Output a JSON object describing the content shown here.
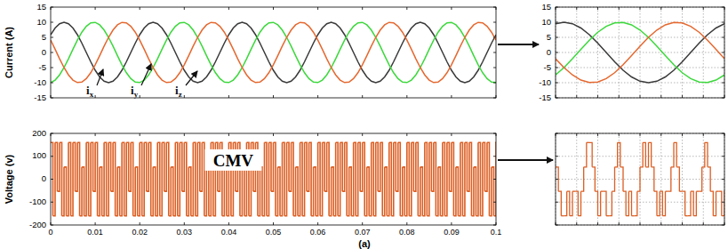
{
  "caption": "(a)",
  "chart_data": [
    {
      "type": "line",
      "ylabel": "Current (A)",
      "grid": false,
      "tick_labels": "y",
      "xlim": [
        0,
        0.1
      ],
      "xticks": [
        0,
        0.01,
        0.02,
        0.03,
        0.04,
        0.05,
        0.06,
        0.07,
        0.08,
        0.09,
        0.1
      ],
      "ylim": [
        -15,
        15
      ],
      "yticks": [
        15,
        10,
        5,
        0,
        -5,
        -10,
        -15
      ],
      "x": [
        0,
        0.001,
        0.002,
        0.003,
        0.004,
        0.005,
        0.006,
        0.007,
        0.008,
        0.009,
        0.01,
        0.011,
        0.012,
        0.013,
        0.014,
        0.015,
        0.016,
        0.017,
        0.018,
        0.019,
        0.02,
        0.021,
        0.022,
        0.023,
        0.024,
        0.025,
        0.026,
        0.027,
        0.028,
        0.029,
        0.03,
        0.031,
        0.032,
        0.033,
        0.034,
        0.035,
        0.036,
        0.037,
        0.038,
        0.039,
        0.04,
        0.041,
        0.042,
        0.043,
        0.044,
        0.045,
        0.046,
        0.047,
        0.048,
        0.049,
        0.05,
        0.051,
        0.052,
        0.053,
        0.054,
        0.055,
        0.056,
        0.057,
        0.058,
        0.059,
        0.06,
        0.061,
        0.062,
        0.063,
        0.064,
        0.065,
        0.066,
        0.067,
        0.068,
        0.069,
        0.07,
        0.071,
        0.072,
        0.073,
        0.074,
        0.075,
        0.076,
        0.077,
        0.078,
        0.079,
        0.08,
        0.081,
        0.082,
        0.083,
        0.084,
        0.085,
        0.086,
        0.087,
        0.088,
        0.089,
        0.09,
        0.091,
        0.092,
        0.093,
        0.094,
        0.095,
        0.096,
        0.097,
        0.098,
        0.099,
        0.1
      ],
      "series": [
        {
          "name": "ix",
          "color": "#3a3a3a",
          "values": [
            5.88,
            8.09,
            9.51,
            10,
            9.51,
            8.09,
            5.88,
            3.09,
            0,
            -3.09,
            -5.88,
            -8.09,
            -9.51,
            -10,
            -9.51,
            -8.09,
            -5.88,
            -3.09,
            0,
            3.09,
            5.88,
            8.09,
            9.51,
            10,
            9.51,
            8.09,
            5.88,
            3.09,
            0,
            -3.09,
            -5.88,
            -8.09,
            -9.51,
            -10,
            -9.51,
            -8.09,
            -5.88,
            -3.09,
            0,
            3.09,
            5.88,
            8.09,
            9.51,
            10,
            9.51,
            8.09,
            5.88,
            3.09,
            0,
            -3.09,
            -5.88,
            -8.09,
            -9.51,
            -10,
            -9.51,
            -8.09,
            -5.88,
            -3.09,
            0,
            3.09,
            5.88,
            8.09,
            9.51,
            10,
            9.51,
            8.09,
            5.88,
            3.09,
            0,
            -3.09,
            -5.88,
            -8.09,
            -9.51,
            -10,
            -9.51,
            -8.09,
            -5.88,
            -3.09,
            0,
            3.09,
            5.88,
            8.09,
            9.51,
            10,
            9.51,
            8.09,
            5.88,
            3.09,
            0,
            -3.09,
            -5.88,
            -8.09,
            -9.51,
            -10,
            -9.51,
            -8.09,
            -5.88,
            -3.09,
            0,
            3.09,
            5.88
          ]
        },
        {
          "name": "iy",
          "color": "#3cd83c",
          "values": [
            -9.95,
            -9.14,
            -7.43,
            -5,
            -2.08,
            1.05,
            4.07,
            6.69,
            8.66,
            9.78,
            9.95,
            9.14,
            7.43,
            5,
            2.08,
            -1.05,
            -4.07,
            -6.69,
            -8.66,
            -9.78,
            -9.95,
            -9.14,
            -7.43,
            -5,
            -2.08,
            1.05,
            4.07,
            6.69,
            8.66,
            9.78,
            9.95,
            9.14,
            7.43,
            5,
            2.08,
            -1.05,
            -4.07,
            -6.69,
            -8.66,
            -9.78,
            -9.95,
            -9.14,
            -7.43,
            -5,
            -2.08,
            1.05,
            4.07,
            6.69,
            8.66,
            9.78,
            9.95,
            9.14,
            7.43,
            5,
            2.08,
            -1.05,
            -4.07,
            -6.69,
            -8.66,
            -9.78,
            -9.95,
            -9.14,
            -7.43,
            -5,
            -2.08,
            1.05,
            4.07,
            6.69,
            8.66,
            9.78,
            9.95,
            9.14,
            7.43,
            5,
            2.08,
            -1.05,
            -4.07,
            -6.69,
            -8.66,
            -9.78,
            -9.95,
            -9.14,
            -7.43,
            -5,
            -2.08,
            1.05,
            4.07,
            6.69,
            8.66,
            9.78,
            9.95,
            9.14,
            7.43,
            5,
            2.08,
            -1.05,
            -4.07,
            -6.69,
            -8.66,
            -9.78,
            -9.95
          ]
        },
        {
          "name": "iz",
          "color": "#e5682f",
          "values": [
            4.07,
            1.05,
            -2.08,
            -5,
            -7.43,
            -9.14,
            -9.95,
            -9.78,
            -8.66,
            -6.69,
            -4.07,
            -1.05,
            2.08,
            5,
            7.43,
            9.14,
            9.95,
            9.78,
            8.66,
            6.69,
            4.07,
            1.05,
            -2.08,
            -5,
            -7.43,
            -9.14,
            -9.95,
            -9.78,
            -8.66,
            -6.69,
            -4.07,
            -1.05,
            2.08,
            5,
            7.43,
            9.14,
            9.95,
            9.78,
            8.66,
            6.69,
            4.07,
            1.05,
            -2.08,
            -5,
            -7.43,
            -9.14,
            -9.95,
            -9.78,
            -8.66,
            -6.69,
            -4.07,
            -1.05,
            2.08,
            5,
            7.43,
            9.14,
            9.95,
            9.78,
            8.66,
            6.69,
            4.07,
            1.05,
            -2.08,
            -5,
            -7.43,
            -9.14,
            -9.95,
            -9.78,
            -8.66,
            -6.69,
            -4.07,
            -1.05,
            2.08,
            5,
            7.43,
            9.14,
            9.95,
            9.78,
            8.66,
            6.69,
            4.07,
            1.05,
            -2.08,
            -5,
            -7.43,
            -9.14,
            -9.95,
            -9.78,
            -8.66,
            -6.69,
            -4.07,
            -1.05,
            2.08,
            5,
            7.43,
            9.14,
            9.95,
            9.78,
            8.66,
            6.69,
            4.07
          ]
        }
      ]
    },
    {
      "type": "line",
      "grid": true,
      "tick_labels": "y",
      "xlim": [
        0.002,
        0.022
      ],
      "xticks": [
        0.002,
        0.0045,
        0.007,
        0.0095,
        0.012,
        0.0145,
        0.017,
        0.0195,
        0.022
      ],
      "ylim": [
        -15,
        15
      ],
      "yticks": [
        15,
        10,
        5,
        0,
        -5,
        -10,
        -15
      ],
      "x": [
        0.002,
        0.003,
        0.004,
        0.005,
        0.006,
        0.007,
        0.008,
        0.009,
        0.01,
        0.011,
        0.012,
        0.013,
        0.014,
        0.015,
        0.016,
        0.017,
        0.018,
        0.019,
        0.02,
        0.021,
        0.022
      ],
      "series": [
        {
          "color": "#3a3a3a",
          "values": [
            9.51,
            10,
            9.51,
            8.09,
            5.88,
            3.09,
            0,
            -3.09,
            -5.88,
            -8.09,
            -9.51,
            -10,
            -9.51,
            -8.09,
            -5.88,
            -3.09,
            0,
            3.09,
            5.88,
            8.09,
            9.51
          ]
        },
        {
          "color": "#3cd83c",
          "values": [
            -7.43,
            -5,
            -2.08,
            1.05,
            4.07,
            6.69,
            8.66,
            9.78,
            9.95,
            9.14,
            7.43,
            5,
            2.08,
            -1.05,
            -4.07,
            -6.69,
            -8.66,
            -9.78,
            -9.95,
            -9.14,
            -7.43
          ]
        },
        {
          "color": "#e5682f",
          "values": [
            -2.08,
            -5,
            -7.43,
            -9.14,
            -9.95,
            -9.78,
            -8.66,
            -6.69,
            -4.07,
            -1.05,
            2.08,
            5,
            7.43,
            9.14,
            9.95,
            9.78,
            8.66,
            6.69,
            4.07,
            1.05,
            -2.08
          ]
        }
      ]
    },
    {
      "type": "line",
      "line_style": "step",
      "ylabel": "Voltage (v)",
      "grid": false,
      "annotations": [
        "CMV"
      ],
      "xlim": [
        0,
        0.1
      ],
      "xticks": [
        0,
        0.01,
        0.02,
        0.03,
        0.04,
        0.05,
        0.06,
        0.07,
        0.08,
        0.09,
        0.1
      ],
      "ylim": [
        -200,
        200
      ],
      "yticks": [
        200,
        100,
        0,
        -100,
        -200
      ],
      "x": [
        0,
        0.0005,
        0.001,
        0.0015,
        0.002,
        0.0025,
        0.003,
        0.0035,
        0.004,
        0.0045,
        0.005,
        0.0055,
        0.006,
        0.0065,
        0.007,
        0.0075,
        0.008,
        0.0085,
        0.009,
        0.0095,
        0.01,
        0.0105,
        0.011,
        0.0115,
        0.012,
        0.0125,
        0.013,
        0.0135,
        0.014,
        0.0145,
        0.015,
        0.0155,
        0.016,
        0.0165,
        0.017,
        0.0175,
        0.018,
        0.0185,
        0.019,
        0.0195,
        0.02,
        0.0205,
        0.021,
        0.0215,
        0.022,
        0.0225,
        0.023,
        0.0235,
        0.024,
        0.0245,
        0.025,
        0.0255,
        0.026,
        0.0265,
        0.027,
        0.0275,
        0.028,
        0.0285,
        0.029,
        0.0295,
        0.03,
        0.0305,
        0.031,
        0.0315,
        0.032,
        0.0325,
        0.033,
        0.0335,
        0.034,
        0.0345,
        0.035,
        0.0355,
        0.036,
        0.0365,
        0.037,
        0.0375,
        0.038,
        0.0385,
        0.039,
        0.0395,
        0.04,
        0.0405,
        0.041,
        0.0415,
        0.042,
        0.0425,
        0.043,
        0.0435,
        0.044,
        0.0445,
        0.045,
        0.0455,
        0.046,
        0.0465,
        0.047,
        0.0475,
        0.048,
        0.0485,
        0.049,
        0.0495,
        0.05,
        0.0505,
        0.051,
        0.0515,
        0.052,
        0.0525,
        0.053,
        0.0535,
        0.054,
        0.0545,
        0.055,
        0.0555,
        0.056,
        0.0565,
        0.057,
        0.0575,
        0.058,
        0.0585,
        0.059,
        0.0595,
        0.06,
        0.0605,
        0.061,
        0.0615,
        0.062,
        0.0625,
        0.063,
        0.0635,
        0.064,
        0.0645,
        0.065,
        0.0655,
        0.066,
        0.0665,
        0.067,
        0.0675,
        0.068,
        0.0685,
        0.069,
        0.0695,
        0.07,
        0.0705,
        0.071,
        0.0715,
        0.072,
        0.0725,
        0.073,
        0.0735,
        0.074,
        0.0745,
        0.075,
        0.0755,
        0.076,
        0.0765,
        0.077,
        0.0775,
        0.078,
        0.0785,
        0.079,
        0.0795,
        0.08,
        0.0805,
        0.081,
        0.0815,
        0.082,
        0.0825,
        0.083,
        0.0835,
        0.084,
        0.0845,
        0.085,
        0.0855,
        0.086,
        0.0865,
        0.087,
        0.0875,
        0.088,
        0.0885,
        0.089,
        0.0895,
        0.09,
        0.0905,
        0.091,
        0.0915,
        0.092,
        0.0925,
        0.093,
        0.0935,
        0.094,
        0.0945,
        0.095,
        0.0955,
        0.096,
        0.0965,
        0.097,
        0.0975,
        0.098,
        0.0985,
        0.099,
        0.0995,
        0.1
      ],
      "series": [
        {
          "color": "#dc5e22",
          "values": [
            160,
            -160,
            160,
            -53,
            160,
            -160,
            53,
            -160,
            160,
            -160,
            160,
            -53,
            160,
            -160,
            53,
            -160,
            160,
            -160,
            160,
            -53,
            160,
            -160,
            53,
            -160,
            160,
            -160,
            160,
            -53,
            160,
            -160,
            53,
            -160,
            160,
            -160,
            160,
            -53,
            160,
            -160,
            53,
            -160,
            160,
            -160,
            160,
            -53,
            160,
            -160,
            53,
            -160,
            160,
            -160,
            160,
            -53,
            160,
            -160,
            53,
            -160,
            160,
            -160,
            160,
            -53,
            160,
            -160,
            53,
            -160,
            160,
            -160,
            160,
            -53,
            160,
            -160,
            53,
            -160,
            160,
            -160,
            160,
            -53,
            160,
            -160,
            53,
            -160,
            160,
            -160,
            160,
            -53,
            160,
            -160,
            53,
            -160,
            160,
            -160,
            160,
            -53,
            160,
            -160,
            53,
            -160,
            160,
            -160,
            160,
            -53,
            160,
            -160,
            53,
            -160,
            160,
            -160,
            160,
            -53,
            160,
            -160,
            53,
            -160,
            160,
            -160,
            160,
            -53,
            160,
            -160,
            53,
            -160,
            160,
            -160,
            160,
            -53,
            160,
            -160,
            53,
            -160,
            160,
            -160,
            160,
            -53,
            160,
            -160,
            53,
            -160,
            160,
            -160,
            160,
            -53,
            160,
            -160,
            53,
            -160,
            160,
            -160,
            160,
            -53,
            160,
            -160,
            53,
            -160,
            160,
            -160,
            160,
            -53,
            160,
            -160,
            53,
            -160,
            160,
            -160,
            160,
            -53,
            160,
            -160,
            53,
            -160,
            160,
            -160,
            160,
            -53,
            160,
            -160,
            53,
            -160,
            160,
            -160,
            160,
            -53,
            160,
            -160,
            53,
            -160,
            160,
            -160,
            160,
            -53,
            160,
            -160,
            53,
            -160,
            160,
            -160,
            160,
            -53,
            160,
            -160,
            53,
            -160,
            160
          ]
        }
      ]
    },
    {
      "type": "line",
      "line_style": "step",
      "grid": true,
      "tick_labels": false,
      "xlim": [
        0,
        0.006
      ],
      "xticks": [
        0,
        0.00075,
        0.0015,
        0.00225,
        0.003,
        0.00375,
        0.0045,
        0.00525,
        0.006
      ],
      "ylim": [
        -200,
        200
      ],
      "yticks": [
        200,
        100,
        0,
        -100,
        -200
      ],
      "x": [
        0,
        0.0001,
        0.0002,
        0.0003,
        0.0004,
        0.0005,
        0.0006,
        0.0007,
        0.0008,
        0.0009,
        0.001,
        0.0011,
        0.0012,
        0.0013,
        0.0014,
        0.0015,
        0.0016,
        0.0017,
        0.0018,
        0.0019,
        0.002,
        0.0021,
        0.0022,
        0.0023,
        0.0024,
        0.0025,
        0.0026,
        0.0027,
        0.0028,
        0.0029,
        0.003,
        0.0031,
        0.0032,
        0.0033,
        0.0034,
        0.0035,
        0.0036,
        0.0037,
        0.0038,
        0.0039,
        0.004,
        0.0041,
        0.0042,
        0.0043,
        0.0044,
        0.0045,
        0.0046,
        0.0047,
        0.0048,
        0.0049,
        0.005,
        0.0051,
        0.0052,
        0.0053,
        0.0054,
        0.0055,
        0.0056,
        0.0057,
        0.0058,
        0.0059,
        0.006
      ],
      "series": [
        {
          "color": "#dc5e22",
          "values": [
            53,
            -53,
            -160,
            -160,
            -53,
            -160,
            -53,
            -53,
            -160,
            -53,
            53,
            160,
            160,
            53,
            -53,
            -160,
            -53,
            -53,
            -160,
            -160,
            -53,
            53,
            160,
            53,
            -53,
            -160,
            -53,
            -160,
            -160,
            -53,
            53,
            160,
            53,
            160,
            53,
            -53,
            -160,
            -53,
            -160,
            -53,
            -53,
            53,
            160,
            53,
            -53,
            -53,
            -160,
            -160,
            -53,
            -160,
            -53,
            -53,
            53,
            160,
            53,
            -53,
            -160,
            -53,
            -53,
            -160,
            -53
          ]
        }
      ]
    }
  ]
}
